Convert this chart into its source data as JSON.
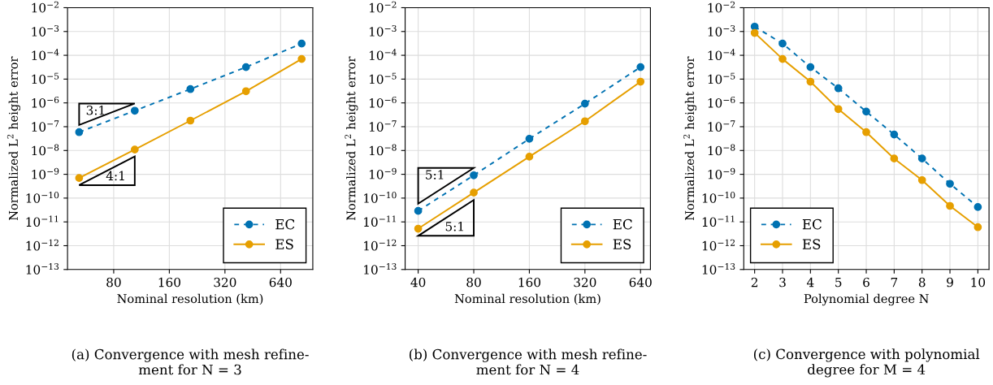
{
  "chart_data": [
    {
      "type": "line",
      "x": [
        52,
        104,
        208,
        416,
        832
      ],
      "xlabel": "Nominal resolution (km)",
      "ylabel": "Normalized L$^{2}$ height error",
      "log": "xy",
      "xlim": [
        45,
        956
      ],
      "xticks": [
        80,
        160,
        320,
        640
      ],
      "ylim": [
        1e-13,
        0.01
      ],
      "yticks": [
        {
          "value": 1e-13,
          "label": "10$^{−13}$"
        },
        {
          "value": 1e-12,
          "label": "10$^{−12}$"
        },
        {
          "value": 1e-11,
          "label": "10$^{−11}$"
        },
        {
          "value": 1e-10,
          "label": "10$^{−10}$"
        },
        {
          "value": 1e-09,
          "label": "10$^{−9}$"
        },
        {
          "value": 1e-08,
          "label": "10$^{−8}$"
        },
        {
          "value": 1e-07,
          "label": "10$^{−7}$"
        },
        {
          "value": 1e-06,
          "label": "10$^{−6}$"
        },
        {
          "value": 1e-05,
          "label": "10$^{−5}$"
        },
        {
          "value": 0.0001,
          "label": "10$^{−4}$"
        },
        {
          "value": 0.001,
          "label": "10$^{−3}$"
        },
        {
          "value": 0.01,
          "label": "10$^{−2}$"
        }
      ],
      "grid": true,
      "legend": "bottom right",
      "marker": "circle",
      "series": [
        {
          "name": "EC",
          "color": "#0072b2",
          "line_style": "dashed",
          "values": [
            5.9e-08,
            4.7e-07,
            3.8e-06,
            3.2e-05,
            0.00031
          ]
        },
        {
          "name": "ES",
          "color": "#e69f00",
          "line_style": "solid",
          "values": [
            7e-10,
            1.1e-08,
            1.8e-07,
            3.1e-06,
            7e-05
          ]
        }
      ],
      "annotations": [
        "3:1",
        "4:1",
        "(a) Convergence with mesh refine-\nment for N = 3"
      ]
    },
    {
      "type": "line",
      "x": [
        40,
        80,
        160,
        320,
        640
      ],
      "xlabel": "Nominal resolution (km)",
      "ylabel": "Normalized L$^{2}$ height error",
      "log": "xy",
      "xlim": [
        34,
        724
      ],
      "xticks": [
        40,
        80,
        160,
        320,
        640
      ],
      "ylim": [
        1e-13,
        0.01
      ],
      "yticks": [
        {
          "value": 1e-13,
          "label": "10$^{−13}$"
        },
        {
          "value": 1e-12,
          "label": "10$^{−12}$"
        },
        {
          "value": 1e-11,
          "label": "10$^{−11}$"
        },
        {
          "value": 1e-10,
          "label": "10$^{−10}$"
        },
        {
          "value": 1e-09,
          "label": "10$^{−9}$"
        },
        {
          "value": 1e-08,
          "label": "10$^{−8}$"
        },
        {
          "value": 1e-07,
          "label": "10$^{−7}$"
        },
        {
          "value": 1e-06,
          "label": "10$^{−6}$"
        },
        {
          "value": 1e-05,
          "label": "10$^{−5}$"
        },
        {
          "value": 0.0001,
          "label": "10$^{−4}$"
        },
        {
          "value": 0.001,
          "label": "10$^{−3}$"
        },
        {
          "value": 0.01,
          "label": "10$^{−2}$"
        }
      ],
      "grid": true,
      "legend": "bottom right",
      "marker": "circle",
      "series": [
        {
          "name": "EC",
          "color": "#0072b2",
          "line_style": "dashed",
          "values": [
            2.9e-11,
            9.1e-10,
            3.1e-08,
            9.3e-07,
            3.2e-05
          ]
        },
        {
          "name": "ES",
          "color": "#e69f00",
          "line_style": "solid",
          "values": [
            5.2e-12,
            1.7e-10,
            5.5e-09,
            1.7e-07,
            7.8e-06
          ]
        }
      ],
      "annotations": [
        "5:1",
        "5:1",
        "(b) Convergence with mesh refine-\nment for N = 4"
      ]
    },
    {
      "type": "line",
      "x": [
        2,
        3,
        4,
        5,
        6,
        7,
        8,
        9,
        10
      ],
      "xlabel": "Polynomial degree N",
      "ylabel": "Normalized L$^{2}$ height error",
      "log": "y",
      "xlim": [
        1.61,
        10.4
      ],
      "xticks": [
        2,
        3,
        4,
        5,
        6,
        7,
        8,
        9,
        10
      ],
      "ylim": [
        1e-13,
        0.01
      ],
      "yticks": [
        {
          "value": 1e-13,
          "label": "10$^{−13}$"
        },
        {
          "value": 1e-12,
          "label": "10$^{−12}$"
        },
        {
          "value": 1e-11,
          "label": "10$^{−11}$"
        },
        {
          "value": 1e-10,
          "label": "10$^{−10}$"
        },
        {
          "value": 1e-09,
          "label": "10$^{−9}$"
        },
        {
          "value": 1e-08,
          "label": "10$^{−8}$"
        },
        {
          "value": 1e-07,
          "label": "10$^{−7}$"
        },
        {
          "value": 1e-06,
          "label": "10$^{−6}$"
        },
        {
          "value": 1e-05,
          "label": "10$^{−5}$"
        },
        {
          "value": 0.0001,
          "label": "10$^{−4}$"
        },
        {
          "value": 0.001,
          "label": "10$^{−3}$"
        },
        {
          "value": 0.01,
          "label": "10$^{−2}$"
        }
      ],
      "grid": true,
      "legend": "bottom left",
      "marker": "circle",
      "series": [
        {
          "name": "EC",
          "color": "#0072b2",
          "line_style": "dashed",
          "values": [
            0.0016,
            0.00031,
            3.2e-05,
            4.1e-06,
            4.3e-07,
            4.7e-08,
            4.6e-09,
            4e-10,
            4.2e-11
          ]
        },
        {
          "name": "ES",
          "color": "#e69f00",
          "line_style": "solid",
          "values": [
            0.00087,
            7e-05,
            7.8e-06,
            5.5e-07,
            5.9e-08,
            4.6e-09,
            5.7e-10,
            4.7e-11,
            6e-12
          ]
        }
      ],
      "annotations": [
        "(c) Convergence with polynomial\ndegree for M = 4"
      ]
    }
  ]
}
